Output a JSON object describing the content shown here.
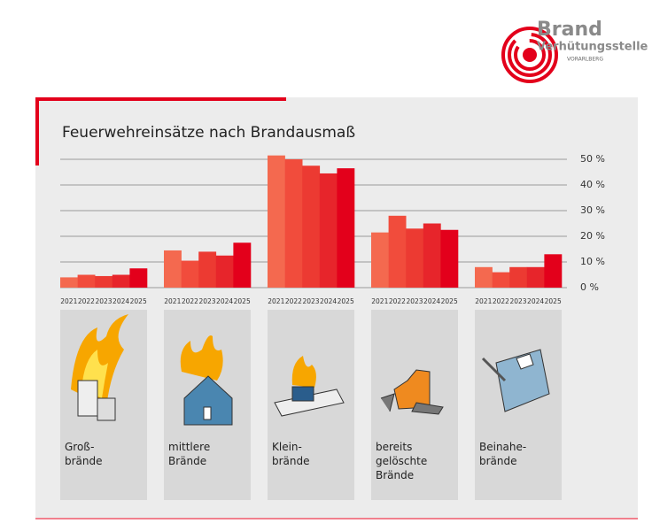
{
  "logo": {
    "line1": "Brand",
    "line2": "Verhütungsstelle",
    "line3": "VORARLBERG"
  },
  "chart_data": {
    "type": "bar",
    "title": "Feuerwehreinsätze nach Brandausmaß",
    "categories": [
      "Groß-\nbrände",
      "mittlere\nBrände",
      "Klein-\nbrände",
      "bereits\ngelöschte\nBrände",
      "Beinahe-\nbrände"
    ],
    "series": [
      {
        "name": "2021",
        "color": "#f4694f",
        "values": [
          4,
          14.5,
          51.5,
          21.5,
          8
        ]
      },
      {
        "name": "2022",
        "color": "#f14c3c",
        "values": [
          5,
          10.5,
          50,
          28,
          6
        ]
      },
      {
        "name": "2023",
        "color": "#ec3a32",
        "values": [
          4.5,
          14,
          47.5,
          23,
          8
        ]
      },
      {
        "name": "2024",
        "color": "#e7252b",
        "values": [
          5,
          12.5,
          44.5,
          25,
          8
        ]
      },
      {
        "name": "2025",
        "color": "#e3001b",
        "values": [
          7.5,
          17.5,
          46.5,
          22.5,
          13
        ]
      }
    ],
    "ylim": [
      0,
      50
    ],
    "yticks": [
      {
        "value": 0,
        "label": "0 %"
      },
      {
        "value": 10,
        "label": "10 %"
      },
      {
        "value": 20,
        "label": "20 %"
      },
      {
        "value": 30,
        "label": "30 %"
      },
      {
        "value": 40,
        "label": "40 %"
      },
      {
        "value": 50,
        "label": "50 %"
      }
    ],
    "grid": true
  }
}
